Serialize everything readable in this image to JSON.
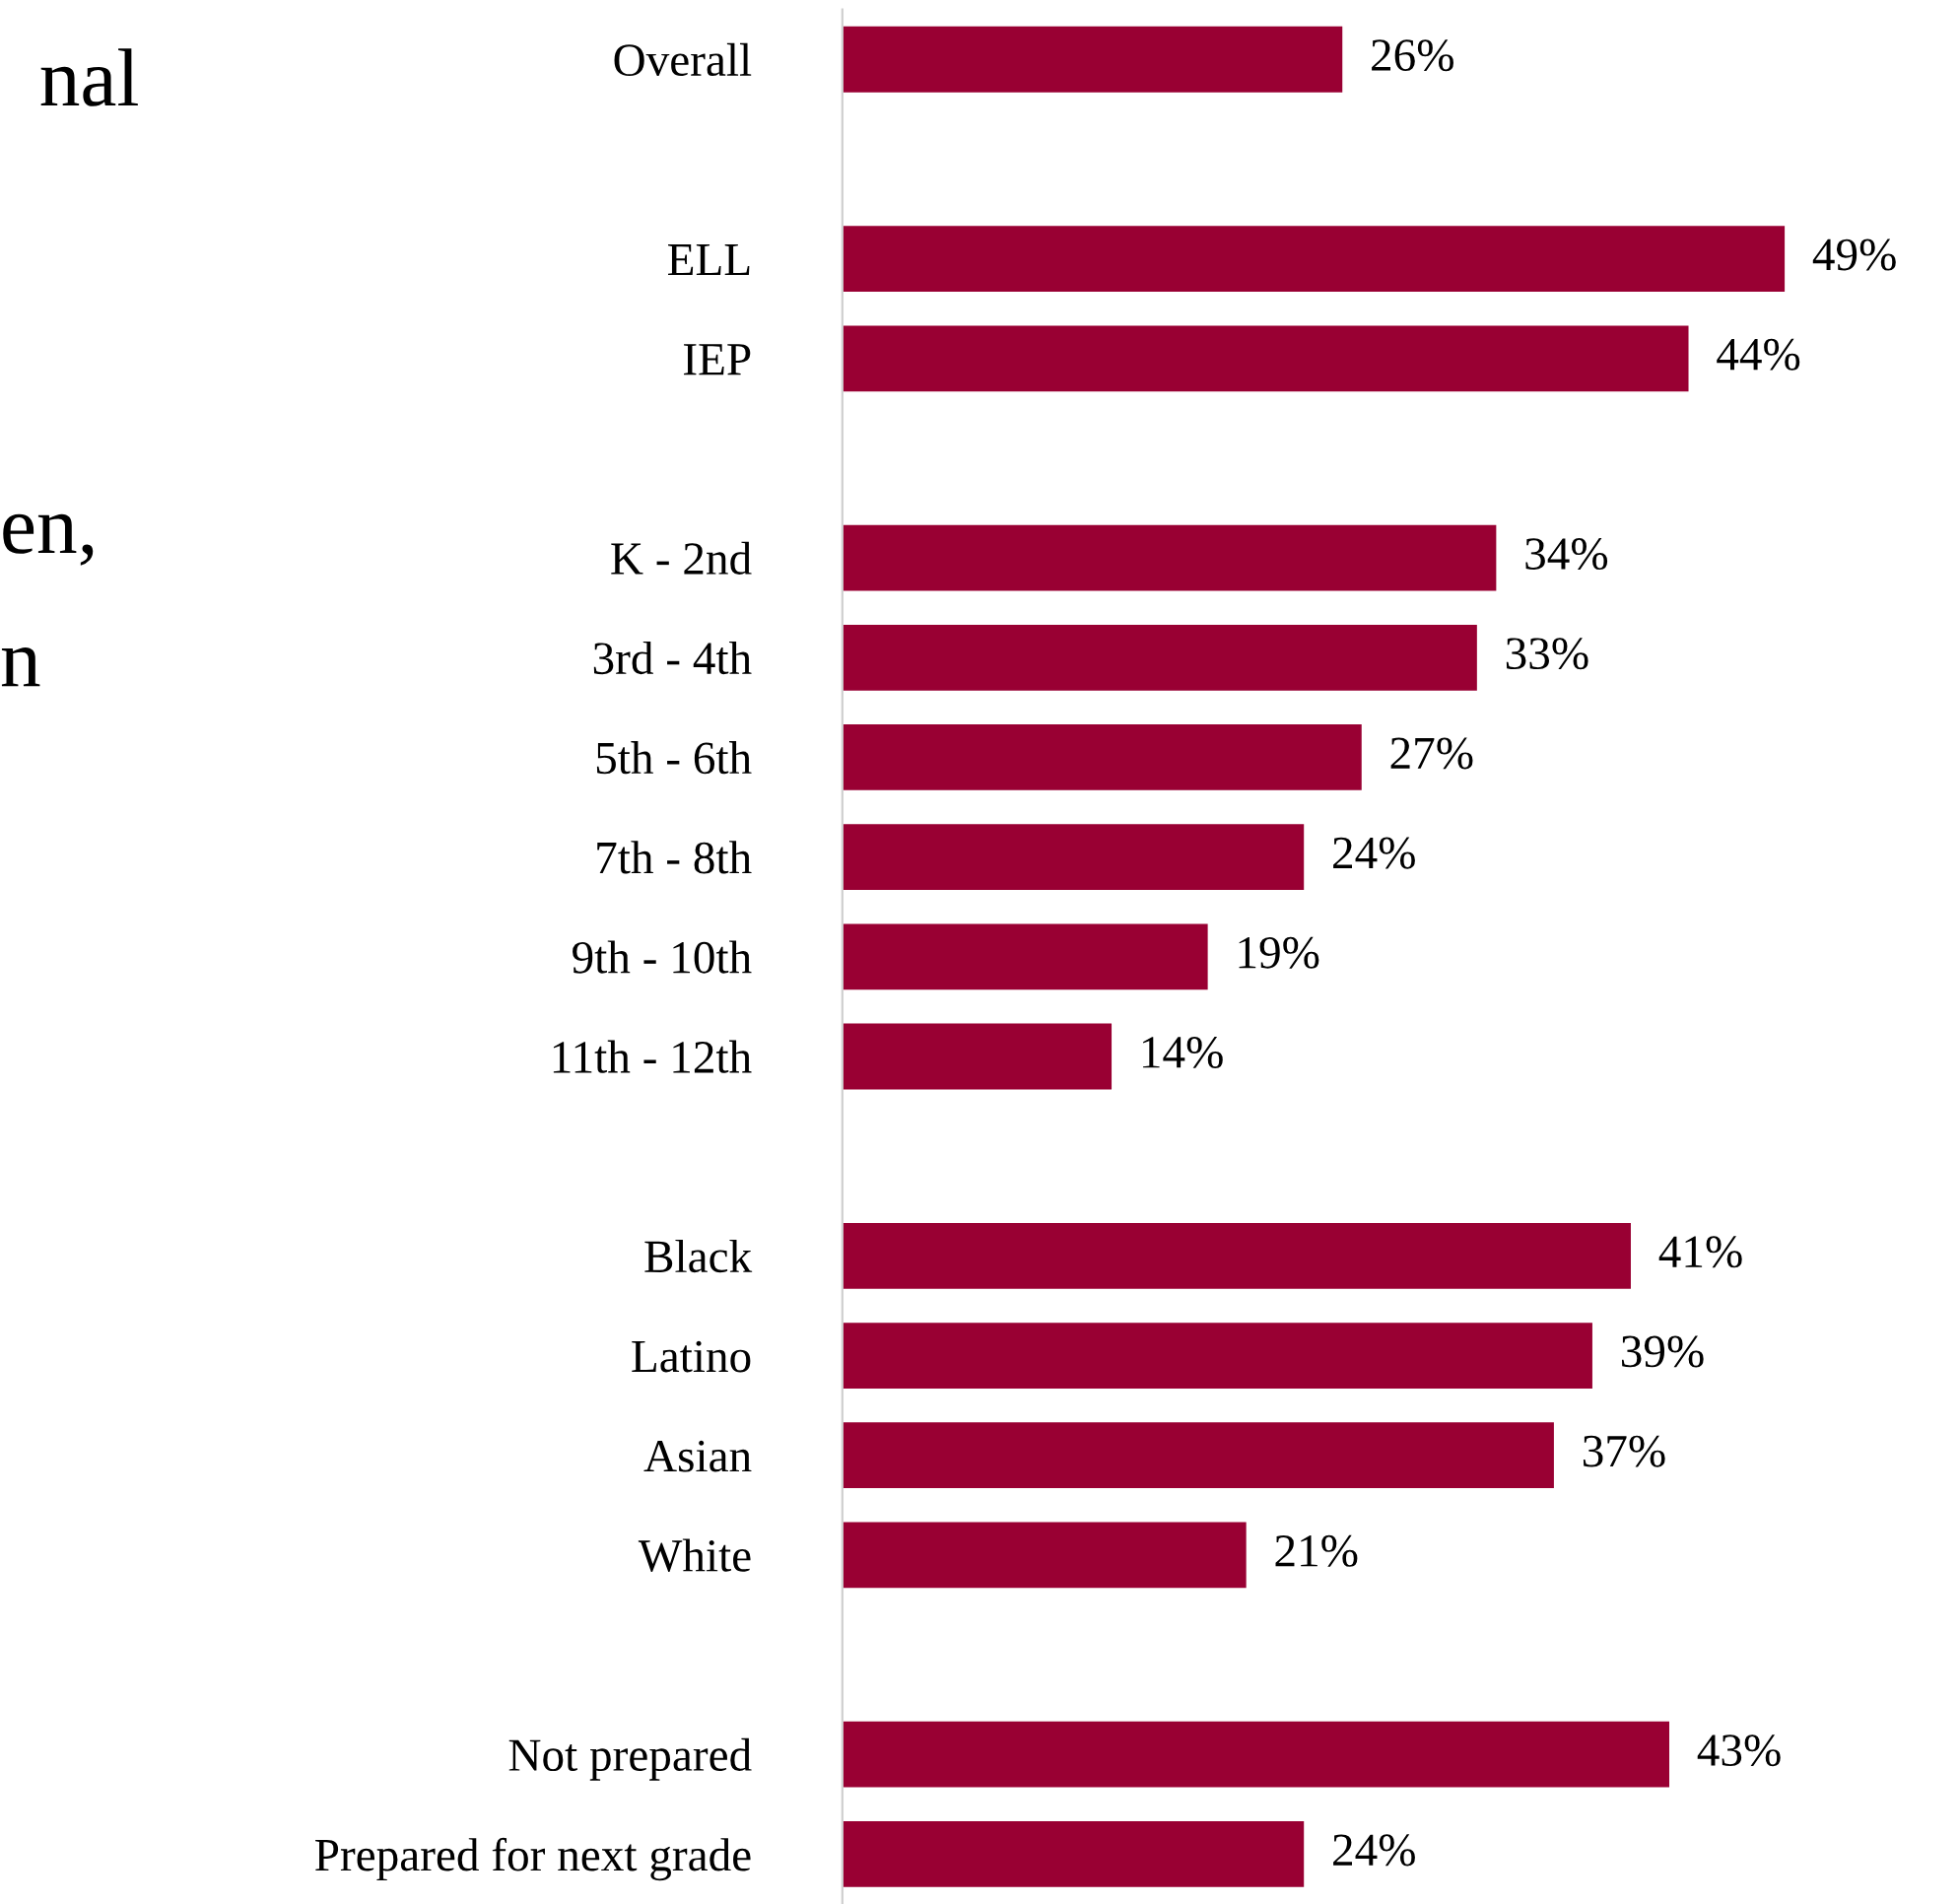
{
  "chart_data": {
    "type": "bar",
    "orientation": "horizontal",
    "categories": [
      "Overall",
      null,
      "ELL",
      "IEP",
      null,
      "K - 2nd",
      "3rd - 4th",
      "5th - 6th",
      "7th - 8th",
      "9th - 10th",
      "11th - 12th",
      null,
      "Black",
      "Latino",
      "Asian",
      "White",
      null,
      "Not prepared",
      "Prepared for next grade"
    ],
    "values": [
      26,
      null,
      49,
      44,
      null,
      34,
      33,
      27,
      24,
      19,
      14,
      null,
      41,
      39,
      37,
      21,
      null,
      43,
      24
    ],
    "value_labels": [
      "26%",
      null,
      "49%",
      "44%",
      null,
      "34%",
      "33%",
      "27%",
      "24%",
      "19%",
      "14%",
      null,
      "41%",
      "39%",
      "37%",
      "21%",
      null,
      "43%",
      "24%"
    ],
    "color": "#990033",
    "grid": false,
    "legend": false,
    "annotations": [
      "nal",
      "en,",
      "n"
    ]
  }
}
